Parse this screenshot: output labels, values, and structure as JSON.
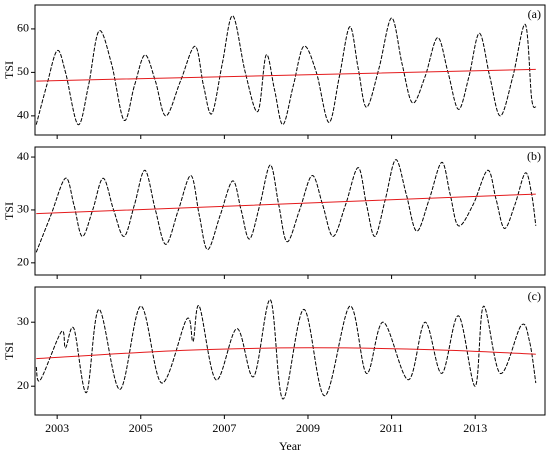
{
  "chart_data": [
    {
      "type": "line",
      "label": "(a)",
      "ylabel": "TSI",
      "xlim": [
        2002.47,
        2014.67
      ],
      "xticks": [
        2003,
        2005,
        2007,
        2009,
        2011,
        2013
      ],
      "ylim": [
        35.6,
        65.5
      ],
      "yticks": [
        40,
        50,
        60
      ],
      "series": [
        {
          "color": "#000000",
          "style": "dashed",
          "x": [
            2002.5,
            2002.75,
            2003.0,
            2003.2,
            2003.5,
            2003.75,
            2004.0,
            2004.3,
            2004.6,
            2004.85,
            2005.1,
            2005.35,
            2005.6,
            2005.95,
            2006.3,
            2006.5,
            2006.7,
            2006.95,
            2007.2,
            2007.5,
            2007.8,
            2008.0,
            2008.2,
            2008.4,
            2008.65,
            2008.9,
            2009.2,
            2009.5,
            2009.75,
            2010.0,
            2010.2,
            2010.4,
            2010.7,
            2011.0,
            2011.25,
            2011.5,
            2011.8,
            2012.1,
            2012.35,
            2012.6,
            2012.85,
            2013.1,
            2013.35,
            2013.6,
            2013.9,
            2014.2,
            2014.35,
            2014.45
          ],
          "values": [
            38,
            47,
            55,
            50,
            38,
            47,
            59.5,
            52,
            39,
            47,
            54,
            48,
            40,
            48,
            56,
            47,
            40.5,
            52,
            63,
            50,
            41,
            54,
            46,
            38,
            47,
            56,
            50,
            38.5,
            49,
            60.5,
            51,
            42,
            51,
            62.5,
            52,
            43,
            49,
            58,
            50,
            41.5,
            49,
            59,
            49,
            40,
            49,
            61,
            44,
            42
          ]
        },
        {
          "color": "#e41a1c",
          "style": "solid",
          "x": [
            2002.5,
            2014.45
          ],
          "values": [
            48,
            50.7
          ]
        }
      ]
    },
    {
      "type": "line",
      "label": "(b)",
      "ylabel": "TSI",
      "xlim": [
        2002.47,
        2014.67
      ],
      "xticks": [
        2003,
        2005,
        2007,
        2009,
        2011,
        2013
      ],
      "ylim": [
        17.7,
        41.9
      ],
      "yticks": [
        20,
        30,
        40
      ],
      "series": [
        {
          "color": "#000000",
          "style": "dashed",
          "x": [
            2002.5,
            2002.85,
            2003.2,
            2003.4,
            2003.6,
            2003.85,
            2004.1,
            2004.35,
            2004.6,
            2004.85,
            2005.1,
            2005.35,
            2005.6,
            2005.9,
            2006.2,
            2006.4,
            2006.6,
            2006.9,
            2007.2,
            2007.4,
            2007.6,
            2007.85,
            2008.1,
            2008.3,
            2008.5,
            2008.8,
            2009.1,
            2009.35,
            2009.6,
            2009.9,
            2010.2,
            2010.4,
            2010.6,
            2010.85,
            2011.1,
            2011.35,
            2011.6,
            2011.9,
            2012.2,
            2012.4,
            2012.6,
            2012.95,
            2013.3,
            2013.5,
            2013.7,
            2013.95,
            2014.2,
            2014.35,
            2014.45
          ],
          "values": [
            22,
            29,
            36,
            31,
            25,
            30,
            36,
            30,
            25,
            31,
            37.5,
            30,
            23.5,
            30,
            36.5,
            29,
            22.5,
            29,
            35.5,
            30,
            24.5,
            31,
            38.5,
            31,
            24,
            30,
            36.5,
            31,
            25,
            31,
            38,
            31,
            25,
            32,
            39.5,
            33,
            26,
            32,
            39,
            33,
            27,
            31,
            37.5,
            32,
            26.5,
            31,
            37,
            33,
            27
          ]
        },
        {
          "color": "#e41a1c",
          "style": "solid",
          "x": [
            2002.5,
            2014.45
          ],
          "values": [
            29.3,
            33
          ]
        }
      ]
    },
    {
      "type": "line",
      "label": "(c)",
      "ylabel": "TSI",
      "xlabel": "Year",
      "xlim": [
        2002.47,
        2014.67
      ],
      "xticks": [
        2003,
        2005,
        2007,
        2009,
        2011,
        2013
      ],
      "ylim": [
        15.5,
        35.5
      ],
      "yticks": [
        20,
        30
      ],
      "series": [
        {
          "color": "#000000",
          "style": "dashed",
          "x": [
            2002.5,
            2002.6,
            2003.1,
            2003.2,
            2003.4,
            2003.7,
            2004.0,
            2004.5,
            2005.0,
            2005.5,
            2006.1,
            2006.25,
            2006.4,
            2006.8,
            2007.3,
            2007.7,
            2008.1,
            2008.4,
            2008.9,
            2009.4,
            2010.0,
            2010.4,
            2010.8,
            2011.4,
            2011.8,
            2012.2,
            2012.6,
            2013.0,
            2013.2,
            2013.6,
            2014.1,
            2014.3,
            2014.45
          ],
          "values": [
            23,
            21,
            28.5,
            26,
            29,
            19,
            32,
            19.5,
            32.5,
            20.5,
            30.5,
            27,
            32.5,
            21,
            29,
            21.5,
            33.5,
            18,
            32,
            18.5,
            32.5,
            22,
            30,
            21,
            30,
            22,
            31,
            20,
            32.5,
            22,
            29.5,
            27,
            20.5
          ]
        },
        {
          "color": "#e41a1c",
          "style": "solid",
          "x": [
            2002.5,
            2006,
            2009,
            2012,
            2014.45
          ],
          "values": [
            24.3,
            25.6,
            26,
            25.7,
            25
          ]
        }
      ]
    }
  ]
}
